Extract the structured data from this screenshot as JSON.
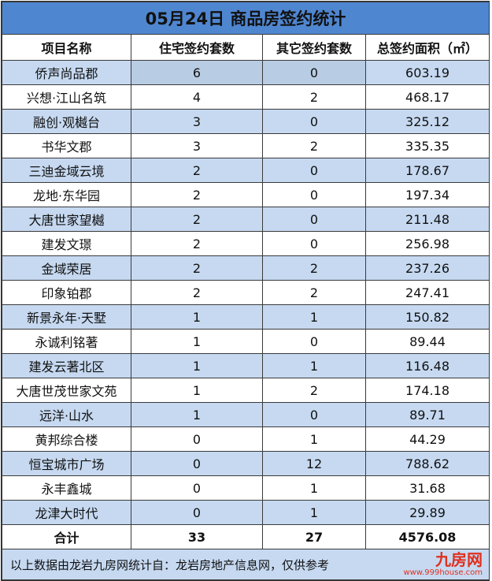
{
  "title": "05月24日 商品房签约统计",
  "headers": [
    "项目名称",
    "住宅签约套数",
    "其它签约套数",
    "总签约面积（㎡）"
  ],
  "rows": [
    [
      "侨声尚品郡",
      "6",
      "0",
      "603.19"
    ],
    [
      "兴想·江山名筑",
      "4",
      "2",
      "468.17"
    ],
    [
      "融创·观樾台",
      "3",
      "0",
      "325.12"
    ],
    [
      "书华文郡",
      "3",
      "2",
      "335.35"
    ],
    [
      "三迪金域云境",
      "2",
      "0",
      "178.67"
    ],
    [
      "龙地·东华园",
      "2",
      "0",
      "197.34"
    ],
    [
      "大唐世家望樾",
      "2",
      "0",
      "211.48"
    ],
    [
      "建发文璟",
      "2",
      "0",
      "256.98"
    ],
    [
      "金域荣居",
      "2",
      "2",
      "237.26"
    ],
    [
      "印象铂郡",
      "2",
      "2",
      "247.41"
    ],
    [
      "新景永年·天墅",
      "1",
      "1",
      "150.82"
    ],
    [
      "永诚利铭著",
      "1",
      "0",
      "89.44"
    ],
    [
      "建发云著北区",
      "1",
      "1",
      "116.48"
    ],
    [
      "大唐世茂世家文苑",
      "1",
      "2",
      "174.18"
    ],
    [
      "远洋·山水",
      "1",
      "0",
      "89.71"
    ],
    [
      "黄邦综合楼",
      "0",
      "1",
      "44.29"
    ],
    [
      "恒宝城市广场",
      "0",
      "12",
      "788.62"
    ],
    [
      "永丰鑫城",
      "0",
      "1",
      "31.68"
    ],
    [
      "龙津大时代",
      "0",
      "1",
      "29.89"
    ]
  ],
  "total": [
    "合计",
    "33",
    "27",
    "4576.08"
  ],
  "footer": "以上数据由龙岩九房网统计自：龙岩房地产信息网，仅供参考",
  "watermark": {
    "logo": "九房网",
    "url": "www.999house.com"
  },
  "colors": {
    "title_bg": "#4f86d0",
    "row_alt": "#c6d9f1"
  }
}
